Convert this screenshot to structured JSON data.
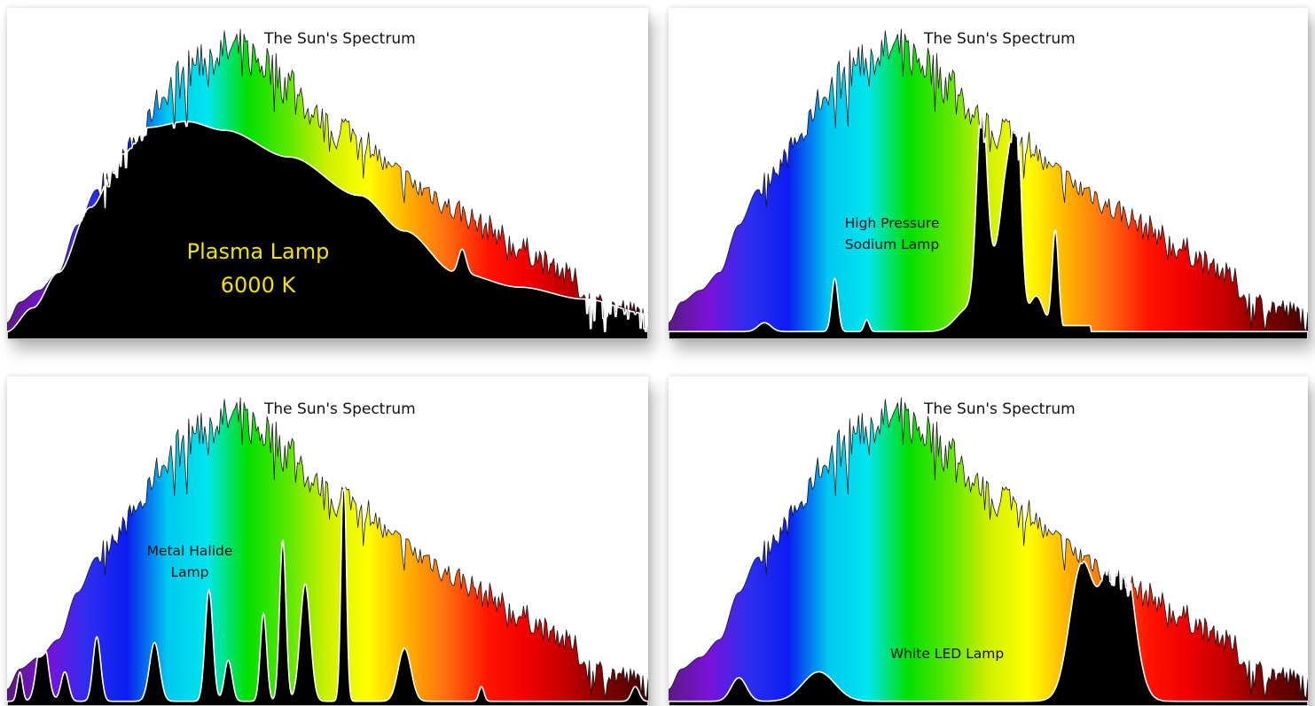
{
  "colors": {
    "spectrum": [
      "#5a1a82",
      "#7a12d8",
      "#2d2ef0",
      "#0a1ef0",
      "#00c8f0",
      "#00e6ee",
      "#00e000",
      "#5ae800",
      "#cff000",
      "#ffff00",
      "#ffb000",
      "#ff6a10",
      "#ff1400",
      "#f00000",
      "#c00000",
      "#7a0000",
      "#4a0000"
    ],
    "lamp_fill": "#000000",
    "panel_bg": "#ffffff"
  },
  "chart_data": [
    {
      "type": "area",
      "title": "The Sun's Spectrum",
      "series": [
        {
          "name": "Plasma Lamp 6000 K",
          "label_lines": [
            "Plasma Lamp",
            "6000 K"
          ]
        }
      ]
    },
    {
      "type": "area",
      "title": "The Sun's Spectrum",
      "series": [
        {
          "name": "High Pressure Sodium Lamp",
          "label_lines": [
            "High Pressure",
            "Sodium Lamp"
          ]
        }
      ]
    },
    {
      "type": "area",
      "title": "The Sun's Spectrum",
      "series": [
        {
          "name": "Metal Halide Lamp",
          "label_lines": [
            "Metal Halide",
            "Lamp"
          ]
        }
      ]
    },
    {
      "type": "area",
      "title": "The Sun's Spectrum",
      "series": [
        {
          "name": "White LED Lamp",
          "label_lines": [
            "White LED Lamp"
          ]
        }
      ]
    }
  ]
}
